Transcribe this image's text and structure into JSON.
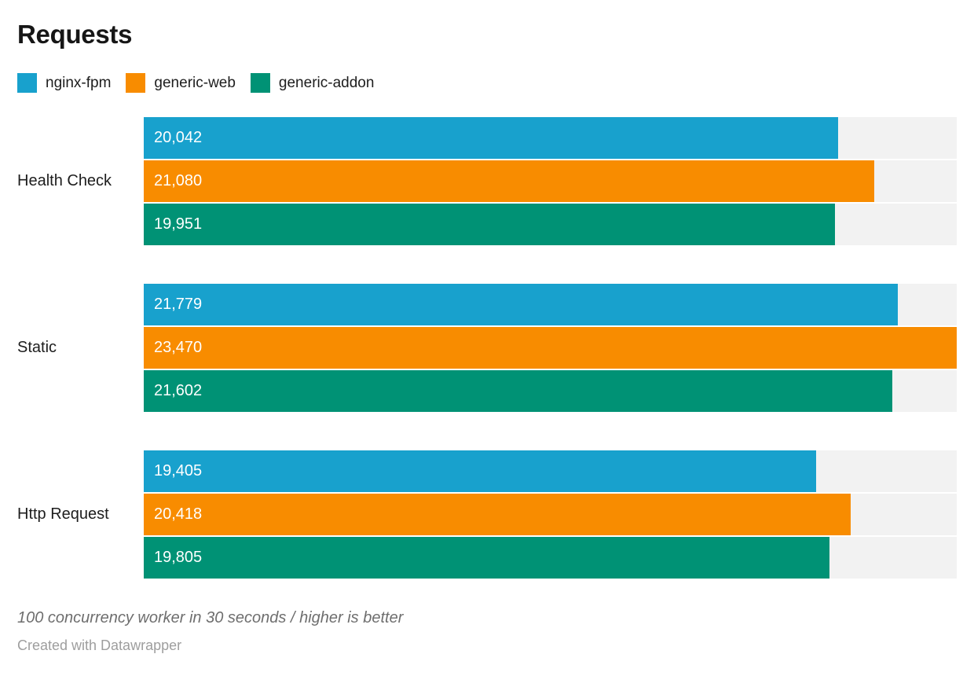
{
  "title": "Requests",
  "footer": {
    "note": "100 concurrency worker in 30 seconds / higher is better",
    "attribution": "Created with Datawrapper"
  },
  "colors": {
    "background": "#ffffff",
    "track": "#f2f2f2",
    "title_text": "#161616",
    "label_text": "#1d1d1d",
    "value_text": "#ffffff",
    "note_text": "#6e6e6e",
    "attribution_text": "#9e9e9e"
  },
  "chart_data": {
    "type": "bar",
    "orientation": "horizontal",
    "title": "Requests",
    "categories": [
      "Health Check",
      "Static",
      "Http Request"
    ],
    "series": [
      {
        "name": "nginx-fpm",
        "color": "#18a1cd",
        "values": [
          20042,
          21779,
          19405
        ]
      },
      {
        "name": "generic-web",
        "color": "#f88c00",
        "values": [
          21080,
          23470,
          20418
        ]
      },
      {
        "name": "generic-addon",
        "color": "#009275",
        "values": [
          19951,
          21602,
          19805
        ]
      }
    ],
    "xlabel": "",
    "ylabel": "",
    "xlim": [
      0,
      23470
    ],
    "grid": false,
    "legend_position": "top",
    "value_labels_shown": true,
    "number_format": "thousands-comma"
  }
}
